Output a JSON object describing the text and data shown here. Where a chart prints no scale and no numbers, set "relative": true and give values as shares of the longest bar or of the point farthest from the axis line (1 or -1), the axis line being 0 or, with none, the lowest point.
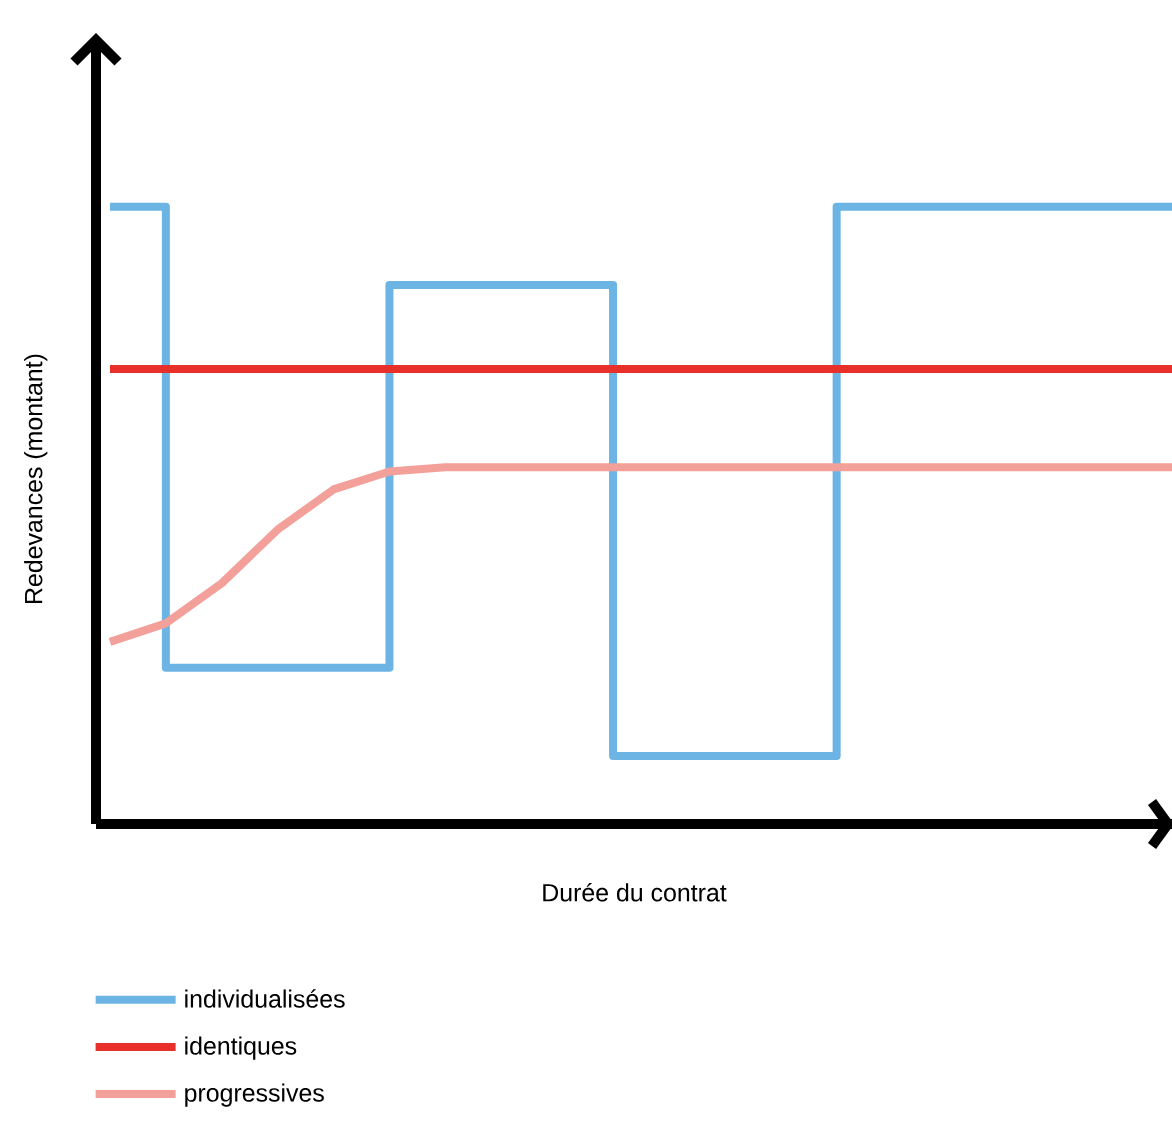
{
  "chart_data": {
    "type": "line",
    "relative": true,
    "xlabel": "Durée du contrat",
    "ylabel": "Redevances (montant)",
    "legend": "bottom",
    "categories": [
      null,
      null,
      null,
      null,
      null,
      null,
      null,
      null,
      null,
      null,
      null,
      null,
      null,
      null,
      null,
      null,
      null,
      null,
      null,
      null
    ],
    "series": [
      {
        "name": "individualisées",
        "type": "step",
        "color": "#6cb4e4",
        "values": [
          1,
          0.253,
          0.253,
          0.253,
          0.253,
          0.873,
          0.873,
          0.873,
          0.873,
          0.11,
          0.11,
          0.11,
          0.11,
          1,
          1,
          1,
          1,
          1,
          1,
          1
        ]
      },
      {
        "name": "identiques",
        "color": "#e8302a",
        "values": [
          0.737,
          0.737,
          0.737,
          0.737,
          0.737,
          0.737,
          0.737,
          0.737,
          0.737,
          0.737,
          0.737,
          0.737,
          0.737,
          0.737,
          0.737,
          0.737,
          0.737,
          0.737,
          0.737,
          0.737
        ]
      },
      {
        "name": "progressives",
        "color": "#f4a09a",
        "values": [
          0.295,
          0.325,
          0.39,
          0.477,
          0.542,
          0.571,
          0.578,
          0.578,
          0.578,
          0.578,
          0.578,
          0.578,
          0.578,
          0.578,
          0.578,
          0.578,
          0.578,
          0.578,
          0.578,
          0.578
        ]
      }
    ]
  }
}
